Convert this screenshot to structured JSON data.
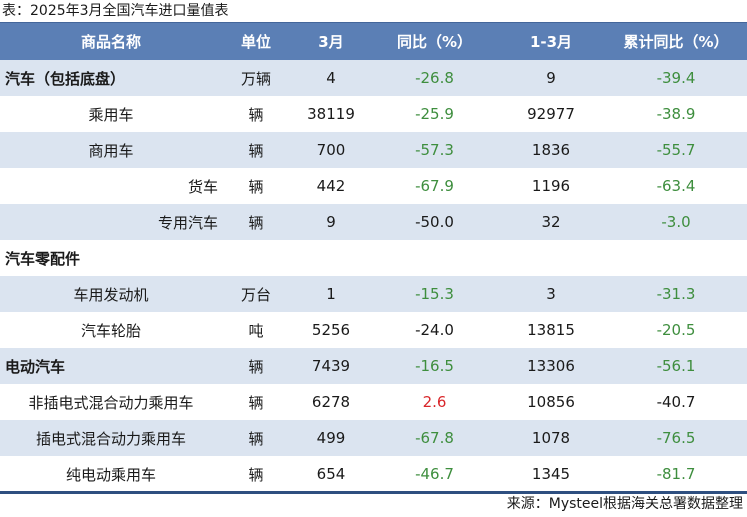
{
  "caption": "表：2025年3月全国汽车进口量值表",
  "columns": [
    "商品名称",
    "单位",
    "3月",
    "同比（%）",
    "1-3月",
    "累计同比（%）"
  ],
  "rows": [
    {
      "name": "汽车（包括底盘）",
      "unit": "万辆",
      "month": "4",
      "yoy": "-26.8",
      "cum": "9",
      "cum_yoy": "-39.4"
    },
    {
      "name": "乘用车",
      "unit": "辆",
      "month": "38119",
      "yoy": "-25.9",
      "cum": "92977",
      "cum_yoy": "-38.9"
    },
    {
      "name": "商用车",
      "unit": "辆",
      "month": "700",
      "yoy": "-57.3",
      "cum": "1836",
      "cum_yoy": "-55.7"
    },
    {
      "name": "货车",
      "unit": "辆",
      "month": "442",
      "yoy": "-67.9",
      "cum": "1196",
      "cum_yoy": "-63.4"
    },
    {
      "name": "专用汽车",
      "unit": "辆",
      "month": "9",
      "yoy": "-50.0",
      "cum": "32",
      "cum_yoy": "-3.0"
    },
    {
      "name": "汽车零配件",
      "unit": "",
      "month": "",
      "yoy": "",
      "cum": "",
      "cum_yoy": ""
    },
    {
      "name": "车用发动机",
      "unit": "万台",
      "month": "1",
      "yoy": "-15.3",
      "cum": "3",
      "cum_yoy": "-31.3"
    },
    {
      "name": "汽车轮胎",
      "unit": "吨",
      "month": "5256",
      "yoy": "-24.0",
      "cum": "13815",
      "cum_yoy": "-20.5"
    },
    {
      "name": "电动汽车",
      "unit": "辆",
      "month": "7439",
      "yoy": "-16.5",
      "cum": "13306",
      "cum_yoy": "-56.1"
    },
    {
      "name": "非插电式混合动力乘用车",
      "unit": "辆",
      "month": "6278",
      "yoy": "2.6",
      "cum": "10856",
      "cum_yoy": "-40.7"
    },
    {
      "name": "插电式混合动力乘用车",
      "unit": "辆",
      "month": "499",
      "yoy": "-67.8",
      "cum": "1078",
      "cum_yoy": "-76.5"
    },
    {
      "name": "纯电动乘用车",
      "unit": "辆",
      "month": "654",
      "yoy": "-46.7",
      "cum": "1345",
      "cum_yoy": "-81.7"
    }
  ],
  "source": "来源：Mysteel根据海关总署数据整理",
  "colors": {
    "header_bg": "#5b7fb5",
    "shade_bg": "#dbe4f0",
    "negative": "#3e8e3e",
    "positive": "#d9262a",
    "divider": "#2e4f80"
  }
}
